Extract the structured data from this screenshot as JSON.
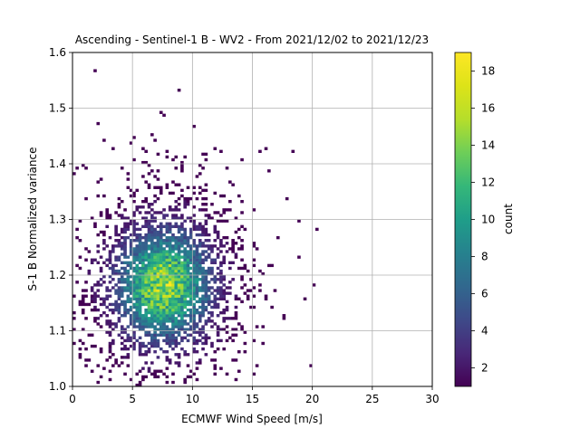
{
  "chart_data": {
    "type": "heatmap",
    "subtype": "2d-histogram",
    "title": "Ascending - Sentinel-1 B - WV2 - From 2021/12/02 to 2021/12/23",
    "xlabel": "ECMWF Wind Speed [m/s]",
    "ylabel": "S-1 B Normalized variance",
    "xlim": [
      0,
      30
    ],
    "ylim": [
      1.0,
      1.6
    ],
    "xticks": [
      0,
      5,
      10,
      15,
      20,
      25,
      30
    ],
    "xtick_labels": [
      "0",
      "5",
      "10",
      "15",
      "20",
      "25",
      "30"
    ],
    "yticks": [
      1.0,
      1.1,
      1.2,
      1.3,
      1.4,
      1.5,
      1.6
    ],
    "ytick_labels": [
      "1.0",
      "1.1",
      "1.2",
      "1.3",
      "1.4",
      "1.5",
      "1.6"
    ],
    "grid": true,
    "colormap": "viridis",
    "colorbar": {
      "label": "count",
      "range": [
        1,
        19
      ],
      "ticks": [
        2,
        4,
        6,
        8,
        10,
        12,
        14,
        16,
        18
      ],
      "tick_labels": [
        "2",
        "4",
        "6",
        "8",
        "10",
        "12",
        "14",
        "16",
        "18"
      ]
    },
    "bin_size": {
      "x": 0.25,
      "y": 0.005
    },
    "density_peak": {
      "x": 7.5,
      "y": 1.18,
      "max_count": 19
    }
  }
}
